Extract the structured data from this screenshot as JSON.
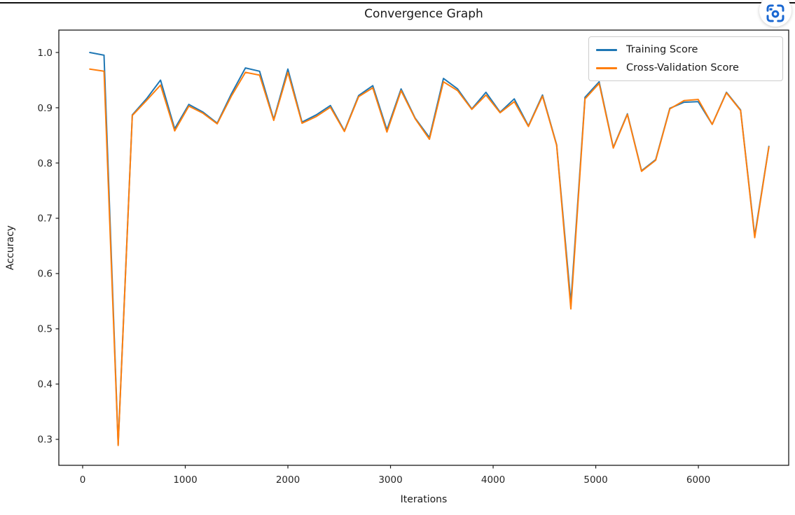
{
  "page": {
    "title": "Convergence Graph"
  },
  "toolbar": {
    "screenshot_button": {
      "icon": "screenshot-camera-icon",
      "color": "#1967d2"
    }
  },
  "chart_data": {
    "type": "line",
    "title": "Convergence Graph",
    "xlabel": "Iterations",
    "ylabel": "Accuracy",
    "grid": false,
    "legend_position": "upper right",
    "xlim": [
      -232,
      6880
    ],
    "ylim": [
      0.253,
      1.0405
    ],
    "x_ticks": [
      0,
      1000,
      2000,
      3000,
      4000,
      5000,
      6000
    ],
    "y_ticks": [
      0.3,
      0.4,
      0.5,
      0.6,
      0.7,
      0.8,
      0.9,
      1.0
    ],
    "x": [
      70,
      208,
      346,
      484,
      622,
      759,
      897,
      1035,
      1173,
      1311,
      1449,
      1586,
      1724,
      1862,
      2000,
      2138,
      2276,
      2414,
      2551,
      2689,
      2827,
      2965,
      3103,
      3241,
      3379,
      3516,
      3654,
      3792,
      3930,
      4068,
      4206,
      4344,
      4481,
      4619,
      4757,
      4895,
      5033,
      5171,
      5308,
      5446,
      5584,
      5722,
      5860,
      5998,
      6135,
      6273,
      6411,
      6549,
      6687
    ],
    "series": [
      {
        "name": "Training Score",
        "color": "#1f77b4",
        "values": [
          1.0,
          0.995,
          0.291,
          0.887,
          0.916,
          0.95,
          0.862,
          0.906,
          0.892,
          0.872,
          0.925,
          0.972,
          0.966,
          0.879,
          0.97,
          0.874,
          0.887,
          0.904,
          0.858,
          0.922,
          0.94,
          0.86,
          0.934,
          0.881,
          0.846,
          0.953,
          0.934,
          0.898,
          0.928,
          0.892,
          0.916,
          0.867,
          0.923,
          0.833,
          0.547,
          0.919,
          0.947,
          0.828,
          0.889,
          0.786,
          0.806,
          0.899,
          0.91,
          0.911,
          0.87,
          0.928,
          0.896,
          0.668,
          0.83
        ]
      },
      {
        "name": "Cross-Validation Score",
        "color": "#ff7f0e",
        "values": [
          0.97,
          0.966,
          0.289,
          0.886,
          0.913,
          0.941,
          0.858,
          0.903,
          0.89,
          0.871,
          0.921,
          0.964,
          0.959,
          0.877,
          0.964,
          0.872,
          0.884,
          0.901,
          0.857,
          0.92,
          0.936,
          0.856,
          0.931,
          0.88,
          0.843,
          0.947,
          0.931,
          0.897,
          0.923,
          0.891,
          0.911,
          0.866,
          0.921,
          0.832,
          0.536,
          0.916,
          0.944,
          0.827,
          0.888,
          0.785,
          0.805,
          0.898,
          0.913,
          0.915,
          0.87,
          0.927,
          0.895,
          0.665,
          0.829
        ]
      }
    ]
  },
  "style": {
    "spine_color": "#1a1a1a",
    "tick_text_color": "#262626",
    "background": "#ffffff"
  }
}
